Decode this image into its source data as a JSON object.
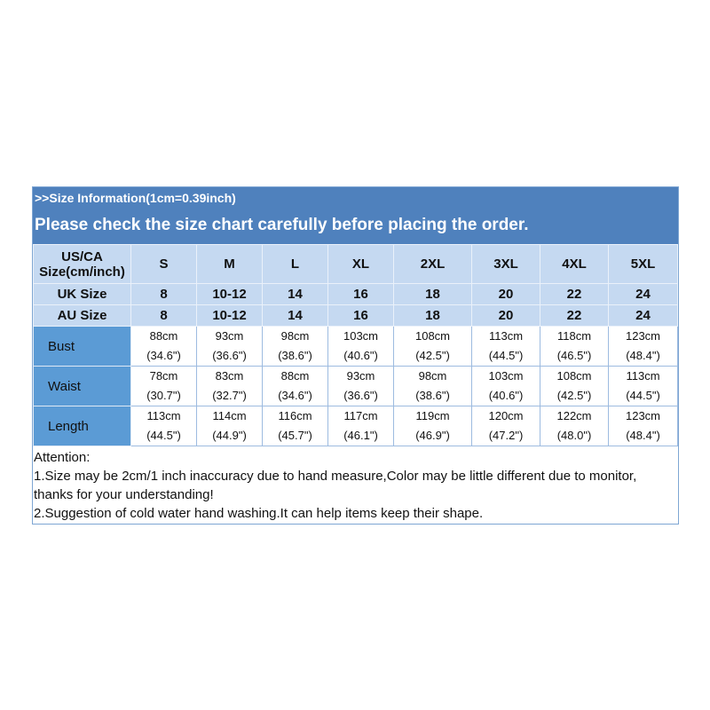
{
  "header": {
    "title": ">>Size Information(1cm=0.39inch)",
    "subtitle": "Please check the size chart carefully before placing the order."
  },
  "colors": {
    "banner": "#4f81bd",
    "header_rows": "#c5d9f1",
    "row_labels": "#5b9bd5"
  },
  "size_rows": [
    {
      "label_line1": "US/CA",
      "label_line2": "Size(cm/inch)",
      "values": [
        "S",
        "M",
        "L",
        "XL",
        "2XL",
        "3XL",
        "4XL",
        "5XL"
      ]
    },
    {
      "label": "UK Size",
      "values": [
        "8",
        "10-12",
        "14",
        "16",
        "18",
        "20",
        "22",
        "24"
      ]
    },
    {
      "label": "AU Size",
      "values": [
        "8",
        "10-12",
        "14",
        "16",
        "18",
        "20",
        "22",
        "24"
      ]
    }
  ],
  "measure_rows": [
    {
      "label": "Bust",
      "cm": [
        "88cm",
        "93cm",
        "98cm",
        "103cm",
        "108cm",
        "113cm",
        "118cm",
        "123cm"
      ],
      "inch": [
        "(34.6\")",
        "(36.6\")",
        "(38.6\")",
        "(40.6\")",
        "(42.5\")",
        "(44.5\")",
        "(46.5\")",
        "(48.4\")"
      ]
    },
    {
      "label": "Waist",
      "cm": [
        "78cm",
        "83cm",
        "88cm",
        "93cm",
        "98cm",
        "103cm",
        "108cm",
        "113cm"
      ],
      "inch": [
        "(30.7\")",
        "(32.7\")",
        "(34.6\")",
        "(36.6\")",
        "(38.6\")",
        "(40.6\")",
        "(42.5\")",
        "(44.5\")"
      ]
    },
    {
      "label": "Length",
      "cm": [
        "113cm",
        "114cm",
        "116cm",
        "117cm",
        "119cm",
        "120cm",
        "122cm",
        "123cm"
      ],
      "inch": [
        "(44.5\")",
        "(44.9\")",
        "(45.7\")",
        "(46.1\")",
        "(46.9\")",
        "(47.2\")",
        "(48.0\")",
        "(48.4\")"
      ]
    }
  ],
  "notes": {
    "heading": "Attention:",
    "line1": "1.Size may be 2cm/1 inch inaccuracy due to hand measure,Color may be little different due to monitor, thanks for your understanding!",
    "line2": "2.Suggestion of cold water hand washing.It can help items keep their shape."
  }
}
